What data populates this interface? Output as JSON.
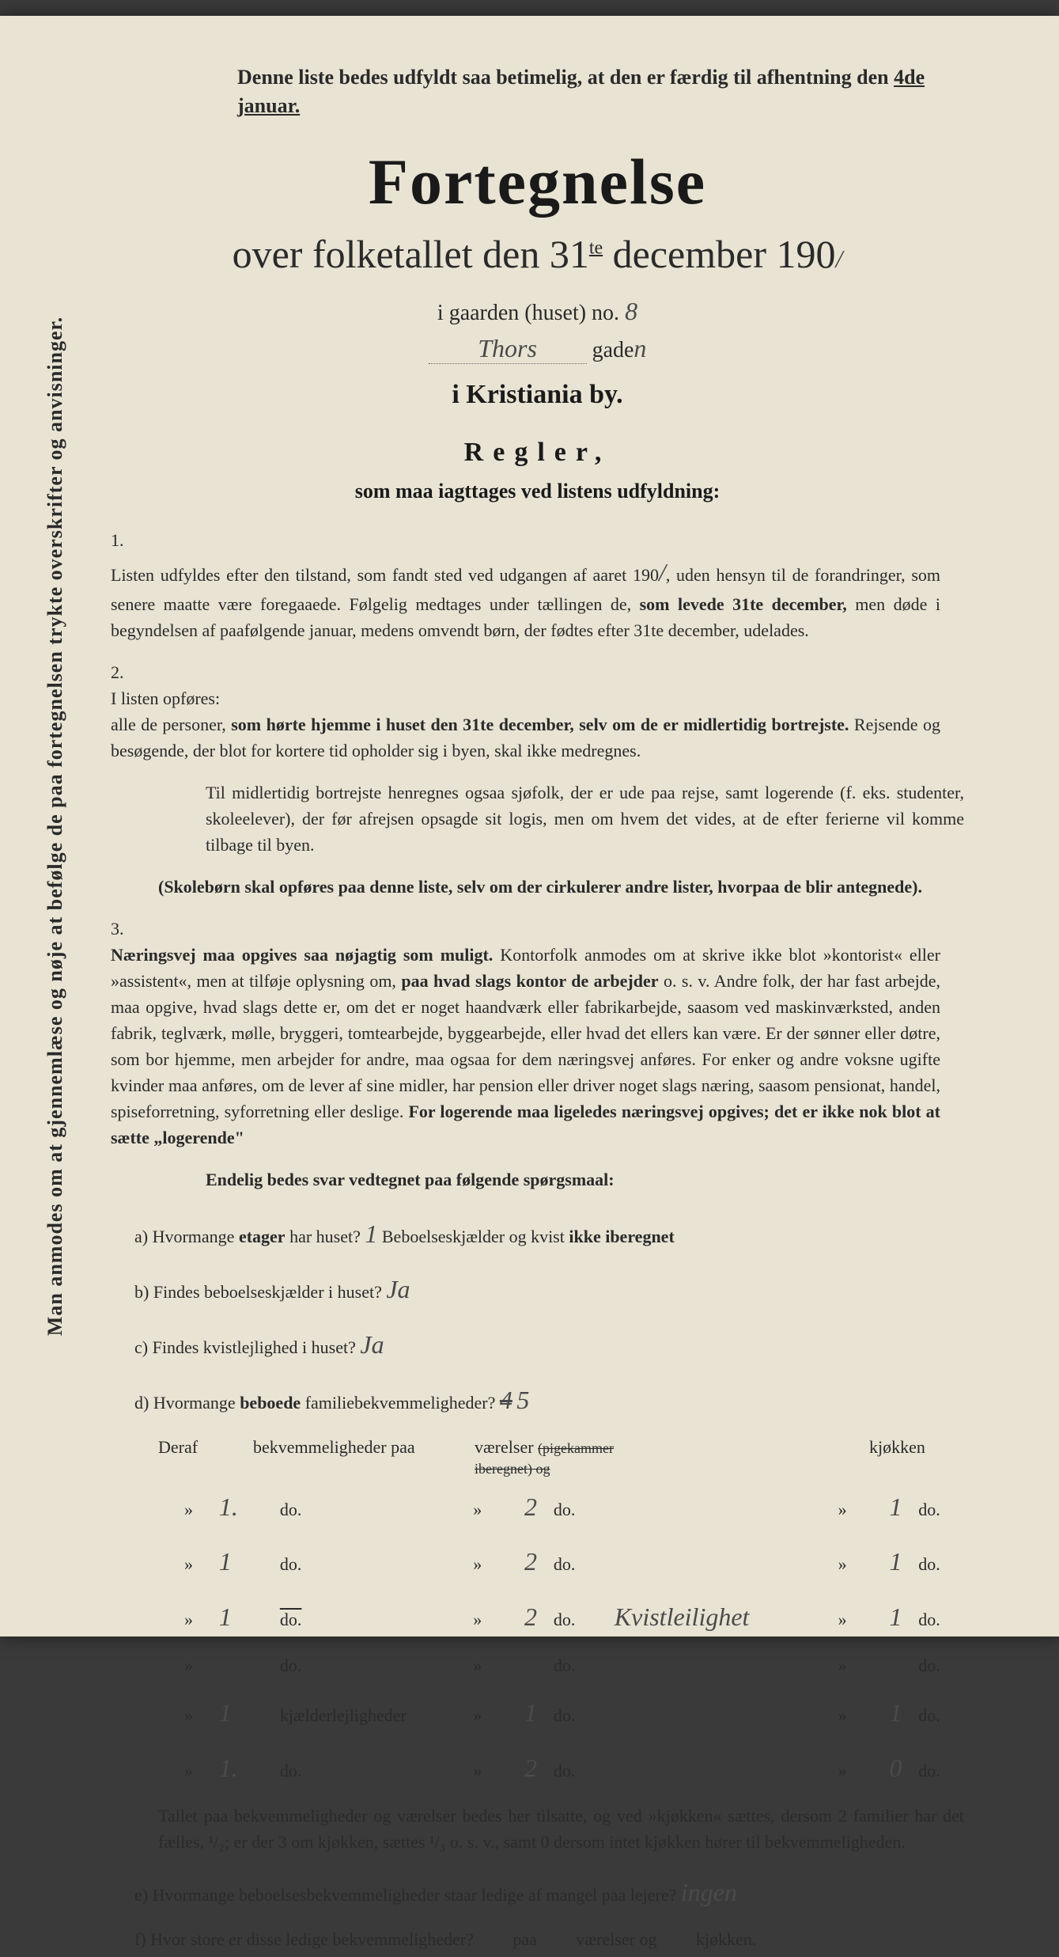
{
  "colors": {
    "paper": "#e8e3d3",
    "ink": "#2a2a2a",
    "dark_ink": "#1a1a1a",
    "handwriting": "#4a4a4a",
    "background": "#3a3a3a"
  },
  "side_note": "Man anmodes om at gjennemlæse og nøje at befølge de paa fortegnelsen trykte overskrifter og anvisninger.",
  "header_notice_pre": "Denne liste bedes udfyldt saa betimelig, at den er færdig til afhentning den ",
  "header_notice_date": "4de januar.",
  "title": "Fortegnelse",
  "subtitle_pre": "over folketallet den 31",
  "subtitle_sup": "te",
  "subtitle_mid": " december 190",
  "subtitle_handwritten_year": "/",
  "house_label": "i gaarden (huset) no.",
  "house_no": "8",
  "street_name": "Thors",
  "street_suffix": "gade",
  "street_hand_suffix": "n",
  "city_line": "i Kristiania by.",
  "regler": "Regler,",
  "regler_sub": "som maa iagttages ved listens udfyldning:",
  "rule1_num": "1.",
  "rule1_a": "Listen udfyldes efter den tilstand, som fandt sted ved udgangen af aaret 190",
  "rule1_year": "/",
  "rule1_b": ", uden hensyn til de forandringer, som senere maatte være foregaaede. Følgelig medtages under tællingen de, ",
  "rule1_bold": "som levede 31te december,",
  "rule1_c": " men døde i begyndelsen af paafølgende januar, medens omvendt børn, der fødtes efter 31te december, udelades.",
  "rule2_num": "2.",
  "rule2_a": "I listen opføres:",
  "rule2_b": "alle de personer, ",
  "rule2_bold1": "som hørte hjemme i huset den 31te december, selv om de er midlertidig bortrejste.",
  "rule2_c": " Rejsende og besøgende, der blot for kortere tid opholder sig i byen, skal ikke medregnes.",
  "rule2_d": "Til midlertidig bortrejste henregnes ogsaa sjøfolk, der er ude paa rejse, samt logerende (f. eks. studenter, skoleelever), der før afrejsen opsagde sit logis, men om hvem det vides, at de efter ferierne vil komme tilbage til byen.",
  "rule2_bold2": "(Skolebørn skal opføres paa denne liste, selv om der cirkulerer andre lister, hvorpaa de blir antegnede).",
  "rule3_num": "3.",
  "rule3_bold1": "Næringsvej maa opgives saa nøjagtig som muligt.",
  "rule3_a": " Kontorfolk anmodes om at skrive ikke blot »kontorist« eller »assistent«, men at tilføje oplysning om, ",
  "rule3_bold2": "paa hvad slags kontor de arbejder",
  "rule3_b": " o. s. v. Andre folk, der har fast arbejde, maa opgive, hvad slags dette er, om det er noget haandværk eller fabrikarbejde, saasom ved maskinværksted, anden fabrik, teglværk, mølle, bryggeri, tomtearbejde, byggearbejde, eller hvad det ellers kan være. Er der sønner eller døtre, som bor hjemme, men arbejder for andre, maa ogsaa for dem næringsvej anføres. For enker og andre voksne ugifte kvinder maa anføres, om de lever af sine midler, har pension eller driver noget slags næring, saasom pensionat, handel, spiseforretning, syforretning eller deslige. ",
  "rule3_bold3": "For logerende maa ligeledes næringsvej opgives; det er ikke nok blot at sætte „logerende\"",
  "questions_header": "Endelig bedes svar vedtegnet paa følgende spørgsmaal:",
  "qa_label": "a)",
  "qa_text": "Hvormange ",
  "qa_bold": "etager",
  "qa_text2": " har huset?",
  "qa_answer": "1",
  "qa_text3": " Beboelseskjælder og kvist ",
  "qa_bold2": "ikke iberegnet",
  "qb_label": "b)",
  "qb_text": "Findes beboelseskjælder i huset?",
  "qb_answer": "Ja",
  "qc_label": "c)",
  "qc_text": "Findes kvistlejlighed i huset?",
  "qc_answer": "Ja",
  "qd_label": "d)",
  "qd_text": "Hvormange ",
  "qd_bold": "beboede",
  "qd_text2": " familiebekvemmeligheder?",
  "qd_answer_struck": "4",
  "qd_answer": "5",
  "table_h1": "Deraf",
  "table_h2": "bekvemmeligheder paa",
  "table_h3": "værelser",
  "table_h3_struck": "(pigekammer iberegnet) og",
  "table_h4": "kjøkken",
  "rows": [
    {
      "c1": "»",
      "c2": "1.",
      "c3": "do.",
      "c4": "»",
      "c5": "2",
      "c6": "do.",
      "note": "",
      "c7": "»",
      "c8": "1",
      "c9": "do."
    },
    {
      "c1": "»",
      "c2": "1",
      "c3": "do.",
      "c4": "»",
      "c5": "2",
      "c6": "do.",
      "note": "",
      "c7": "»",
      "c8": "1",
      "c9": "do."
    },
    {
      "c1": "»",
      "c2": "1",
      "c3": "do.",
      "c4": "»",
      "c5": "2",
      "c6": "do.",
      "note": "Kvistleilighet",
      "c7": "»",
      "c8": "1",
      "c9": "do."
    },
    {
      "c1": "»",
      "c2": "",
      "c3": "do.",
      "c4": "»",
      "c5": "",
      "c6": "do.",
      "note": "",
      "c7": "»",
      "c8": "",
      "c9": "do."
    },
    {
      "c1": "»",
      "c2": "1",
      "c3": "kjælderlejligheder",
      "c4": "»",
      "c5": "1",
      "c6": "do.",
      "note": "",
      "c7": "»",
      "c8": "1",
      "c9": "do."
    },
    {
      "c1": "»",
      "c2": "1.",
      "c3": "do.",
      "c4": "»",
      "c5": "2",
      "c6": "do.",
      "note": "",
      "c7": "»",
      "c8": "0",
      "c9": "do."
    }
  ],
  "footer1": "Tallet paa bekvemmeligheder og værelser bedes her tilsatte, og ved »kjøkken« sættes, dersom 2 familier har det fælles, ¹/₂; er der 3 om kjøkken, sættes ¹/₃ o. s. v., samt 0 dersom intet kjøkken hører til bekvemmeligheden.",
  "qe_label": "e)",
  "qe_text": "Hvormange beboelsesbekvemmeligheder staar ledige af mangel paa lejere?",
  "qe_answer": "ingen",
  "qf_label": "f)",
  "qf_text": "Hvor store er disse ledige bekvemmeligheder?",
  "qf_mid1": "paa",
  "qf_mid2": "værelser og",
  "qf_mid3": "kjøkken.",
  "do_overline": "do."
}
